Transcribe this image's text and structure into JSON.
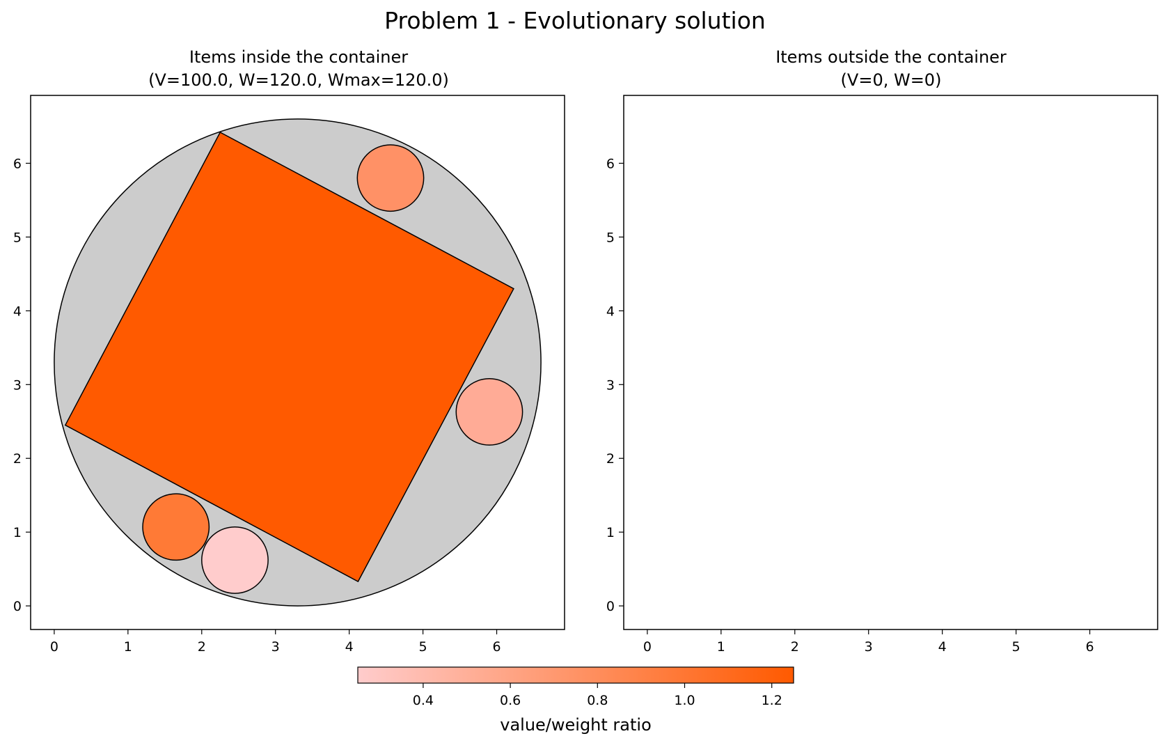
{
  "figure_title": "Problem 1 - Evolutionary solution",
  "chart_data": [
    {
      "type": "scatter",
      "title": [
        "Items inside the container",
        "(V=100.0, W=120.0, Wmax=120.0)"
      ],
      "xlim": [
        -0.32,
        6.92
      ],
      "ylim": [
        -0.32,
        6.92
      ],
      "xticks": [
        "0",
        "1",
        "2",
        "3",
        "4",
        "5",
        "6"
      ],
      "yticks": [
        "0",
        "1",
        "2",
        "3",
        "4",
        "5",
        "6"
      ],
      "container": {
        "center": [
          3.3,
          3.3
        ],
        "radius": 3.3,
        "color": "#cccccc"
      },
      "items": [
        {
          "shape": "polygon",
          "points": [
            [
              0.15,
              2.45
            ],
            [
              2.25,
              6.42
            ],
            [
              6.23,
              4.3
            ],
            [
              4.12,
              0.33
            ]
          ],
          "ratio": 1.25,
          "color": "#ff5a00"
        },
        {
          "shape": "circle",
          "center": [
            4.56,
            5.8
          ],
          "radius": 0.45,
          "ratio": 0.85,
          "color": "#ff9166"
        },
        {
          "shape": "circle",
          "center": [
            5.9,
            2.63
          ],
          "radius": 0.45,
          "ratio": 0.62,
          "color": "#ffab96"
        },
        {
          "shape": "circle",
          "center": [
            1.65,
            1.07
          ],
          "radius": 0.45,
          "ratio": 1.05,
          "color": "#ff7a36"
        },
        {
          "shape": "circle",
          "center": [
            2.45,
            0.62
          ],
          "radius": 0.45,
          "ratio": 0.28,
          "color": "#ffcccc"
        }
      ]
    },
    {
      "type": "scatter",
      "title": [
        "Items outside the container",
        "(V=0, W=0)"
      ],
      "xlim": [
        -0.32,
        6.92
      ],
      "ylim": [
        -0.32,
        6.92
      ],
      "xticks": [
        "0",
        "1",
        "2",
        "3",
        "4",
        "5",
        "6"
      ],
      "yticks": [
        "0",
        "1",
        "2",
        "3",
        "4",
        "5",
        "6"
      ],
      "items": []
    }
  ],
  "colorbar": {
    "label": "value/weight ratio",
    "range": [
      0.25,
      1.25
    ],
    "colors": [
      "#ffcccc",
      "#ff5a00"
    ],
    "ticks": [
      "0.4",
      "0.6",
      "0.8",
      "1.0",
      "1.2"
    ]
  }
}
